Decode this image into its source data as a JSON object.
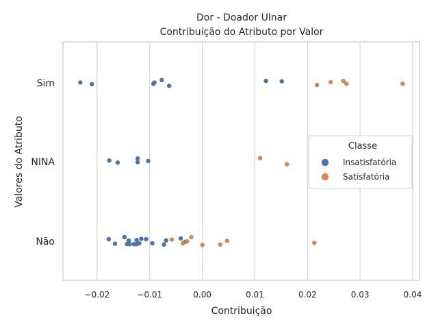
{
  "chart_data": {
    "type": "scatter",
    "title": "Dor - Doador Ulnar",
    "subtitle": "Contribuição do Atributo por Valor",
    "xlabel": "Contribuição",
    "ylabel": "Valores do Atributo",
    "xlim": [
      -0.0265,
      0.0413
    ],
    "x_ticks": [
      "−0.02",
      "−0.01",
      "0.00",
      "0.01",
      "0.02",
      "0.03",
      "0.04"
    ],
    "x_tick_values": [
      -0.02,
      -0.01,
      0.0,
      0.01,
      0.02,
      0.03,
      0.04
    ],
    "categories": [
      "Sim",
      "NINA",
      "Não"
    ],
    "grid": "vertical",
    "legend": {
      "title": "Classe",
      "placement": "center-right"
    },
    "series": [
      {
        "name": "Insatisfatória",
        "color": "#4c72b0",
        "points": [
          {
            "x": -0.0232,
            "y": "Sim",
            "jitter": -0.01
          },
          {
            "x": -0.021,
            "y": "Sim",
            "jitter": 0.03
          },
          {
            "x": -0.0093,
            "y": "Sim",
            "jitter": 0.02
          },
          {
            "x": -0.0091,
            "y": "Sim",
            "jitter": -0.01
          },
          {
            "x": -0.0077,
            "y": "Sim",
            "jitter": -0.07
          },
          {
            "x": -0.0063,
            "y": "Sim",
            "jitter": 0.07
          },
          {
            "x": 0.0121,
            "y": "Sim",
            "jitter": -0.05
          },
          {
            "x": 0.0151,
            "y": "Sim",
            "jitter": -0.04
          },
          {
            "x": -0.0177,
            "y": "NINA",
            "jitter": -0.03
          },
          {
            "x": -0.0161,
            "y": "NINA",
            "jitter": 0.02
          },
          {
            "x": -0.0123,
            "y": "NINA",
            "jitter": -0.08
          },
          {
            "x": -0.0123,
            "y": "NINA",
            "jitter": 0.01
          },
          {
            "x": -0.0103,
            "y": "NINA",
            "jitter": -0.02
          },
          {
            "x": -0.0148,
            "y": "Não",
            "jitter": -0.1
          },
          {
            "x": -0.0178,
            "y": "Não",
            "jitter": -0.05
          },
          {
            "x": -0.014,
            "y": "Não",
            "jitter": -0.02
          },
          {
            "x": -0.0125,
            "y": "Não",
            "jitter": -0.03
          },
          {
            "x": -0.0116,
            "y": "Não",
            "jitter": -0.06
          },
          {
            "x": -0.0107,
            "y": "Não",
            "jitter": -0.05
          },
          {
            "x": -0.0041,
            "y": "Não",
            "jitter": -0.07
          },
          {
            "x": -0.0069,
            "y": "Não",
            "jitter": -0.02
          },
          {
            "x": -0.0166,
            "y": "Não",
            "jitter": 0.06
          },
          {
            "x": -0.0143,
            "y": "Não",
            "jitter": 0.07
          },
          {
            "x": -0.0138,
            "y": "Não",
            "jitter": 0.07
          },
          {
            "x": -0.013,
            "y": "Não",
            "jitter": 0.07
          },
          {
            "x": -0.0125,
            "y": "Não",
            "jitter": 0.07
          },
          {
            "x": -0.012,
            "y": "Não",
            "jitter": 0.05
          },
          {
            "x": -0.014,
            "y": "Não",
            "jitter": 0.03
          },
          {
            "x": -0.0095,
            "y": "Não",
            "jitter": 0.05
          },
          {
            "x": -0.0073,
            "y": "Não",
            "jitter": 0.08
          },
          {
            "x": -0.0033,
            "y": "Não",
            "jitter": 0.02
          }
        ]
      },
      {
        "name": "Satisfatória",
        "color": "#dd8452",
        "points": [
          {
            "x": 0.0218,
            "y": "Sim",
            "jitter": 0.05
          },
          {
            "x": 0.0244,
            "y": "Sim",
            "jitter": -0.02
          },
          {
            "x": 0.0268,
            "y": "Sim",
            "jitter": -0.05
          },
          {
            "x": 0.0274,
            "y": "Sim",
            "jitter": 0.02
          },
          {
            "x": 0.0381,
            "y": "Sim",
            "jitter": 0.02
          },
          {
            "x": 0.011,
            "y": "NINA",
            "jitter": -0.09
          },
          {
            "x": 0.0161,
            "y": "NINA",
            "jitter": 0.06
          },
          {
            "x": -0.0021,
            "y": "Não",
            "jitter": -0.1
          },
          {
            "x": -0.0058,
            "y": "Não",
            "jitter": -0.04
          },
          {
            "x": -0.0029,
            "y": "Não",
            "jitter": 0.0
          },
          {
            "x": -0.0037,
            "y": "Não",
            "jitter": 0.05
          },
          {
            "x": 0.0047,
            "y": "Não",
            "jitter": -0.01
          },
          {
            "x": 0.0,
            "y": "Não",
            "jitter": 0.09
          },
          {
            "x": 0.0034,
            "y": "Não",
            "jitter": 0.08
          },
          {
            "x": 0.0213,
            "y": "Não",
            "jitter": 0.04
          }
        ]
      }
    ]
  }
}
